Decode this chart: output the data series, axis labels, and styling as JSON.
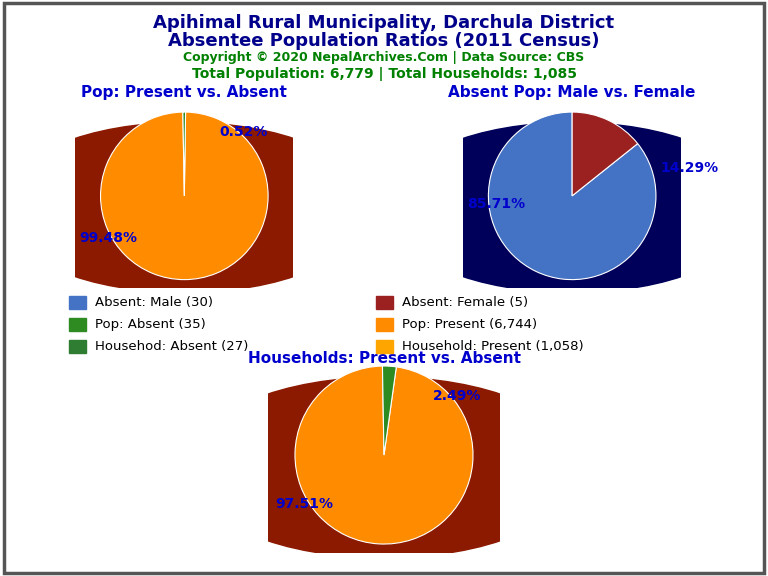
{
  "title_line1": "Apihimal Rural Municipality, Darchula District",
  "title_line2": "Absentee Population Ratios (2011 Census)",
  "copyright": "Copyright © 2020 NepalArchives.Com | Data Source: CBS",
  "total_info": "Total Population: 6,779 | Total Households: 1,085",
  "title_color": "#00008B",
  "copyright_color": "#008000",
  "total_info_color": "#008000",
  "pie1_title": "Pop: Present vs. Absent",
  "pie1_values": [
    6744,
    35
  ],
  "pie1_labels": [
    "99.48%",
    "0.52%"
  ],
  "pie1_colors": [
    "#FF8C00",
    "#2E8B22"
  ],
  "pie1_shadow_color": "#8B1A00",
  "pie2_title": "Absent Pop: Male vs. Female",
  "pie2_values": [
    30,
    5
  ],
  "pie2_labels": [
    "85.71%",
    "14.29%"
  ],
  "pie2_colors": [
    "#4472C4",
    "#9B2020"
  ],
  "pie2_shadow_color": "#00005A",
  "pie3_title": "Households: Present vs. Absent",
  "pie3_values": [
    1058,
    27
  ],
  "pie3_labels": [
    "97.51%",
    "2.49%"
  ],
  "pie3_colors": [
    "#FF8C00",
    "#2E8B22"
  ],
  "pie3_shadow_color": "#8B1A00",
  "subtitle_color": "#0000CD",
  "label_color": "#0000CD",
  "legend_items": [
    {
      "label": "Absent: Male (30)",
      "color": "#4472C4"
    },
    {
      "label": "Pop: Absent (35)",
      "color": "#2E8B22"
    },
    {
      "label": "Househod: Absent (27)",
      "color": "#2E7D32"
    },
    {
      "label": "Absent: Female (5)",
      "color": "#9B2020"
    },
    {
      "label": "Pop: Present (6,744)",
      "color": "#FF8C00"
    },
    {
      "label": "Household: Present (1,058)",
      "color": "#FFA500"
    }
  ],
  "background_color": "#FFFFFF"
}
